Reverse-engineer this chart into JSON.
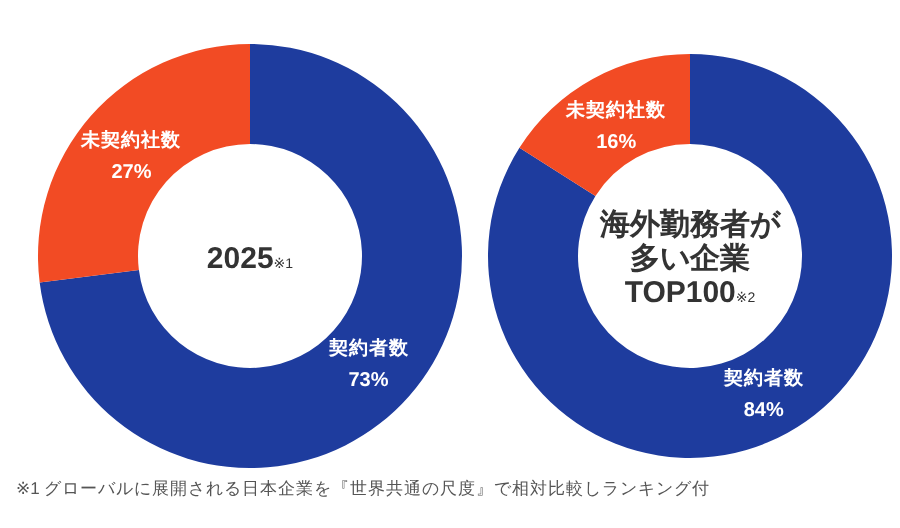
{
  "chart_data": [
    {
      "type": "donut",
      "title": "2025※1",
      "categories": [
        "契約者数",
        "未契約社数"
      ],
      "values": [
        73,
        27
      ],
      "colors": [
        "#1e3c9e",
        "#f24b24"
      ],
      "value_labels": [
        "73%",
        "27%"
      ],
      "legend": false,
      "annotations": [
        "※1 グローバルに展開される日本企業を『世界共通の尺度』で相対比較しランキング付"
      ]
    },
    {
      "type": "donut",
      "title": "海外勤務者が多い企業TOP100※2",
      "categories": [
        "契約者数",
        "未契約社数"
      ],
      "values": [
        84,
        16
      ],
      "colors": [
        "#1e3c9e",
        "#f24b24"
      ],
      "value_labels": [
        "84%",
        "16%"
      ],
      "legend": false
    }
  ]
}
